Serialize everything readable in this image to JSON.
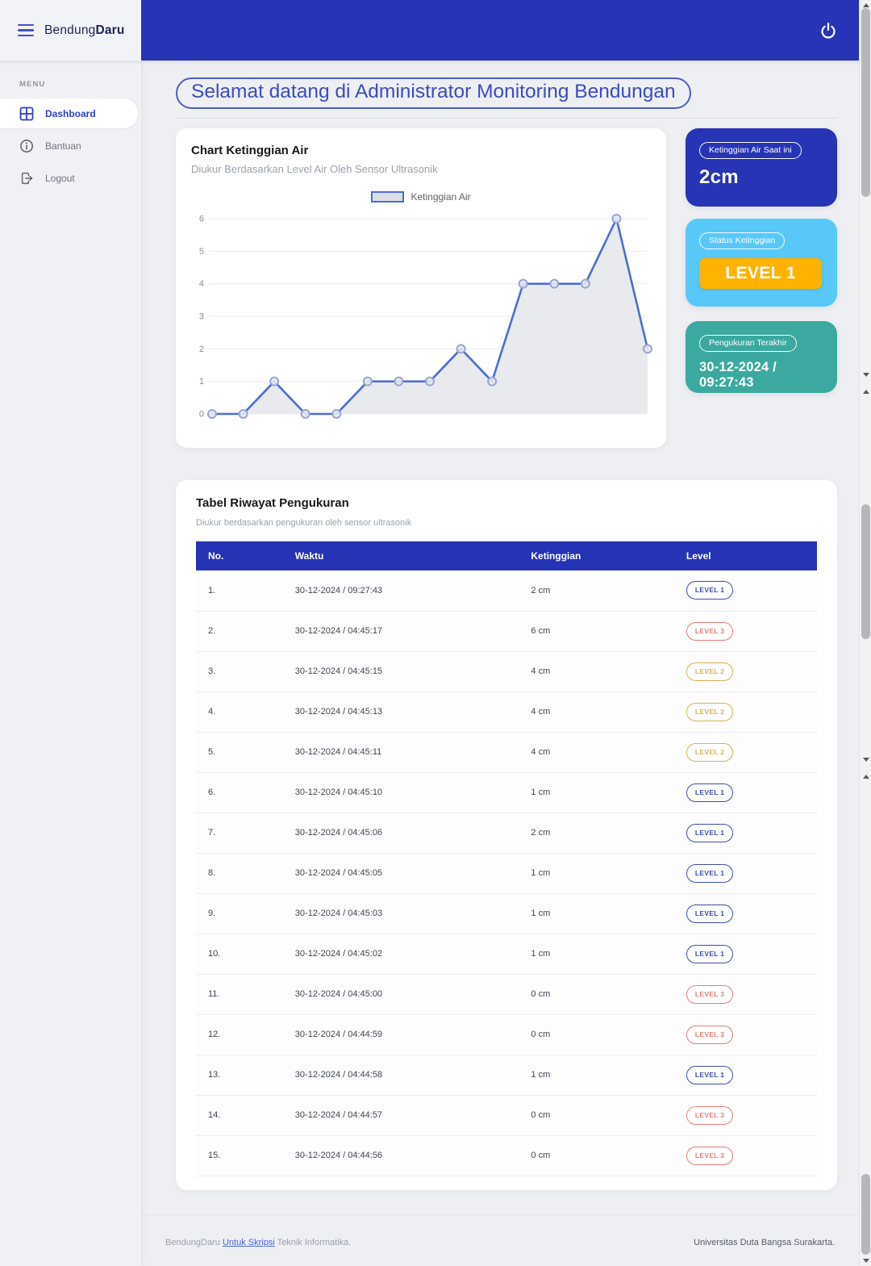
{
  "brand": {
    "regular": "Bendung",
    "bold": "Daru"
  },
  "sidebar": {
    "menu_label": "MENU",
    "items": [
      {
        "label": "Dashboard",
        "active": true
      },
      {
        "label": "Bantuan",
        "active": false
      },
      {
        "label": "Logout",
        "active": false
      }
    ]
  },
  "welcome_title": "Selamat datang di Administrator Monitoring Bendungan",
  "chart_card": {
    "title": "Chart Ketinggian Air",
    "subtitle": "Diukur Berdasarkan Level Air Oleh Sensor Ultrasonik"
  },
  "chart_data": {
    "type": "line",
    "series": [
      {
        "name": "Ketinggian Air",
        "values": [
          0,
          0,
          1,
          0,
          0,
          1,
          1,
          1,
          2,
          1,
          4,
          4,
          4,
          6,
          2
        ]
      }
    ],
    "x_labels": [],
    "yticks": [
      0,
      1,
      2,
      3,
      4,
      5,
      6
    ],
    "ylim": [
      0,
      6
    ],
    "grid": true,
    "legend_position": "top",
    "line_color": "#4b6dd8",
    "area_color": "#e4e5e9",
    "marker_stroke": "#98a5d4",
    "marker_fill": "#e7e8ee",
    "grid_color": "#ebebee",
    "tick_color": "#8b9099"
  },
  "stats": {
    "current": {
      "label": "Ketinggian Air Saat ini",
      "value": "2cm",
      "bg": "#2634b5"
    },
    "status": {
      "label": "Status Ketinggian",
      "value": "LEVEL 1",
      "bg": "#57c8f8",
      "badge_bg": "#ffb300"
    },
    "last": {
      "label": "Pengukuran Terakhir",
      "value": "30-12-2024 / 09:27:43",
      "bg": "#3ba99f"
    }
  },
  "table": {
    "title": "Tabel Riwayat Pengukuran",
    "subtitle": "Diukur berdasarkan pengukuran oleh sensor ultrasonik",
    "columns": [
      "No.",
      "Waktu",
      "Ketinggian",
      "Level"
    ],
    "header_bg": "#2533b4",
    "level_colors": {
      "LEVEL 1": "#3c4fa8",
      "LEVEL 2": "#d8b254",
      "LEVEL 3": "#df8077"
    },
    "rows": [
      {
        "no": "1.",
        "waktu": "30-12-2024 / 09:27:43",
        "ketinggian": "2 cm",
        "level": "LEVEL 1"
      },
      {
        "no": "2.",
        "waktu": "30-12-2024 / 04:45:17",
        "ketinggian": "6 cm",
        "level": "LEVEL 3"
      },
      {
        "no": "3.",
        "waktu": "30-12-2024 / 04:45:15",
        "ketinggian": "4 cm",
        "level": "LEVEL 2"
      },
      {
        "no": "4.",
        "waktu": "30-12-2024 / 04:45:13",
        "ketinggian": "4 cm",
        "level": "LEVEL 2"
      },
      {
        "no": "5.",
        "waktu": "30-12-2024 / 04:45:11",
        "ketinggian": "4 cm",
        "level": "LEVEL 2"
      },
      {
        "no": "6.",
        "waktu": "30-12-2024 / 04:45:10",
        "ketinggian": "1 cm",
        "level": "LEVEL 1"
      },
      {
        "no": "7.",
        "waktu": "30-12-2024 / 04:45:06",
        "ketinggian": "2 cm",
        "level": "LEVEL 1"
      },
      {
        "no": "8.",
        "waktu": "30-12-2024 / 04:45:05",
        "ketinggian": "1 cm",
        "level": "LEVEL 1"
      },
      {
        "no": "9.",
        "waktu": "30-12-2024 / 04:45:03",
        "ketinggian": "1 cm",
        "level": "LEVEL 1"
      },
      {
        "no": "10.",
        "waktu": "30-12-2024 / 04:45:02",
        "ketinggian": "1 cm",
        "level": "LEVEL 1"
      },
      {
        "no": "11.",
        "waktu": "30-12-2024 / 04:45:00",
        "ketinggian": "0 cm",
        "level": "LEVEL 3"
      },
      {
        "no": "12.",
        "waktu": "30-12-2024 / 04:44:59",
        "ketinggian": "0 cm",
        "level": "LEVEL 3"
      },
      {
        "no": "13.",
        "waktu": "30-12-2024 / 04:44:58",
        "ketinggian": "1 cm",
        "level": "LEVEL 1"
      },
      {
        "no": "14.",
        "waktu": "30-12-2024 / 04:44:57",
        "ketinggian": "0 cm",
        "level": "LEVEL 3"
      },
      {
        "no": "15.",
        "waktu": "30-12-2024 / 04:44:56",
        "ketinggian": "0 cm",
        "level": "LEVEL 3"
      }
    ]
  },
  "footer": {
    "left_prefix": "BendungDaru ",
    "link_text": "Untuk Skripsi",
    "left_suffix": " Teknik Informatika.",
    "right": "Universitas Duta Bangsa Surakarta."
  }
}
